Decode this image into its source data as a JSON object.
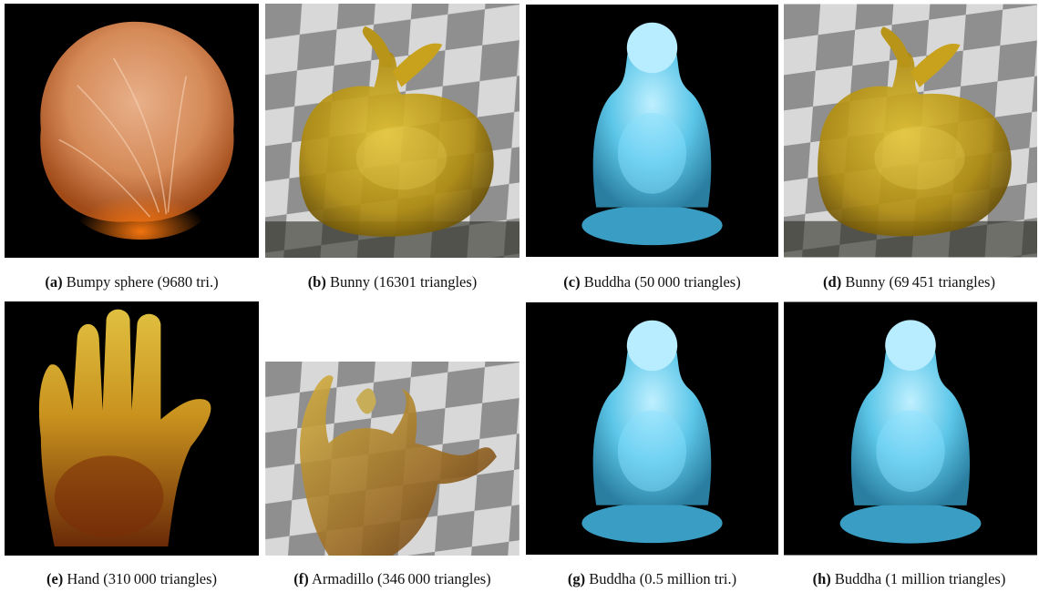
{
  "figure": {
    "panels": [
      {
        "id": "a",
        "tag": "(a)",
        "text": "Bumpy sphere (9680 tri.)",
        "subject": "bumpy-sphere",
        "background": "black"
      },
      {
        "id": "b",
        "tag": "(b)",
        "text": "Bunny (16301 triangles)",
        "subject": "bunny",
        "background": "checkerboard"
      },
      {
        "id": "c",
        "tag": "(c)",
        "text": "Buddha (50 000 triangles)",
        "subject": "buddha",
        "background": "black"
      },
      {
        "id": "d",
        "tag": "(d)",
        "text": "Bunny (69 451 triangles)",
        "subject": "bunny",
        "background": "checkerboard"
      },
      {
        "id": "e",
        "tag": "(e)",
        "text": "Hand (310 000 triangles)",
        "subject": "hand",
        "background": "black"
      },
      {
        "id": "f",
        "tag": "(f)",
        "text": "Armadillo (346 000 triangles)",
        "subject": "armadillo",
        "background": "checkerboard"
      },
      {
        "id": "g",
        "tag": "(g)",
        "text": "Buddha (0.5 million tri.)",
        "subject": "buddha",
        "background": "black"
      },
      {
        "id": "h",
        "tag": "(h)",
        "text": "Buddha (1 million triangles)",
        "subject": "buddha",
        "background": "black"
      }
    ],
    "colors": {
      "sphere": "#e0925a",
      "bunny": "#c8a21c",
      "buddha": "#7fd3ec",
      "hand": "#c06a18",
      "armadillo": "#a07c2a"
    }
  }
}
